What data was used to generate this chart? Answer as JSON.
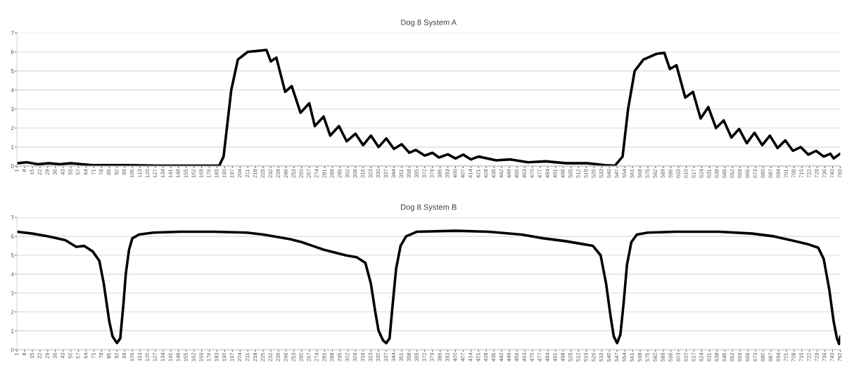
{
  "chart_data": [
    {
      "type": "line",
      "title": "Dog 8 System A",
      "xlim": [
        1,
        750
      ],
      "xticks": [
        1,
        8,
        15,
        22,
        29,
        36,
        43,
        50,
        57,
        64,
        71,
        78,
        85,
        92,
        99,
        106,
        113,
        120,
        127,
        134,
        141,
        148,
        155,
        162,
        169,
        176,
        183,
        190,
        197,
        204,
        211,
        218,
        225,
        232,
        239,
        246,
        253,
        260,
        267,
        274,
        281,
        288,
        295,
        302,
        309,
        316,
        323,
        330,
        337,
        344,
        351,
        358,
        365,
        372,
        379,
        386,
        393,
        400,
        407,
        414,
        421,
        428,
        435,
        442,
        449,
        456,
        463,
        470,
        477,
        484,
        491,
        498,
        505,
        512,
        519,
        526,
        533,
        540,
        547,
        554,
        561,
        568,
        575,
        582,
        589,
        596,
        603,
        610,
        617,
        624,
        631,
        638,
        645,
        652,
        659,
        666,
        673,
        680,
        687,
        694,
        701,
        708,
        715,
        722,
        729,
        736,
        743,
        750
      ],
      "ylim": [
        0,
        7
      ],
      "yticks": [
        0,
        1,
        2,
        3,
        4,
        5,
        6,
        7
      ],
      "grid": "y",
      "legend": false,
      "marker": "none",
      "line_style": "solid",
      "series": [
        {
          "color": "#000000",
          "x": [
            1,
            10,
            20,
            30,
            40,
            50,
            60,
            70,
            80,
            100,
            130,
            160,
            185,
            189,
            196,
            202,
            211,
            220,
            228,
            232,
            237,
            245,
            251,
            259,
            267,
            272,
            280,
            286,
            294,
            301,
            309,
            316,
            323,
            330,
            337,
            344,
            351,
            358,
            364,
            372,
            379,
            385,
            393,
            400,
            407,
            414,
            421,
            437,
            450,
            466,
            482,
            501,
            520,
            536,
            545,
            552,
            557,
            563,
            571,
            583,
            590,
            595,
            601,
            609,
            616,
            623,
            630,
            637,
            644,
            651,
            658,
            665,
            672,
            679,
            686,
            693,
            700,
            707,
            714,
            721,
            728,
            735,
            741,
            744,
            750
          ],
          "values": [
            0.15,
            0.2,
            0.1,
            0.15,
            0.1,
            0.15,
            0.1,
            0.05,
            0.05,
            0.05,
            0.02,
            0.02,
            0.02,
            0.5,
            4,
            5.6,
            6,
            6.05,
            6.1,
            5.5,
            5.7,
            3.9,
            4.2,
            2.8,
            3.3,
            2.1,
            2.6,
            1.6,
            2.1,
            1.3,
            1.7,
            1.1,
            1.6,
            1.0,
            1.45,
            0.9,
            1.15,
            0.7,
            0.85,
            0.55,
            0.7,
            0.45,
            0.62,
            0.4,
            0.6,
            0.35,
            0.5,
            0.3,
            0.35,
            0.2,
            0.25,
            0.15,
            0.15,
            0.05,
            0.02,
            0.5,
            3,
            5,
            5.6,
            5.9,
            5.95,
            5.1,
            5.3,
            3.6,
            3.9,
            2.5,
            3.1,
            2.0,
            2.4,
            1.5,
            1.95,
            1.2,
            1.75,
            1.1,
            1.6,
            0.95,
            1.35,
            0.8,
            1.0,
            0.6,
            0.8,
            0.5,
            0.65,
            0.4,
            0.65
          ]
        }
      ]
    },
    {
      "type": "line",
      "title": "Dog 8 System B",
      "xlim": [
        1,
        750
      ],
      "xticks": [
        1,
        8,
        15,
        22,
        29,
        36,
        43,
        50,
        57,
        64,
        71,
        78,
        85,
        92,
        99,
        106,
        113,
        120,
        127,
        134,
        141,
        148,
        155,
        162,
        169,
        176,
        183,
        190,
        197,
        204,
        211,
        218,
        225,
        232,
        239,
        246,
        253,
        260,
        267,
        274,
        281,
        288,
        295,
        302,
        309,
        316,
        323,
        330,
        337,
        344,
        351,
        358,
        365,
        372,
        379,
        386,
        393,
        400,
        407,
        414,
        421,
        428,
        435,
        442,
        449,
        456,
        463,
        470,
        477,
        484,
        491,
        498,
        505,
        512,
        519,
        526,
        533,
        540,
        547,
        554,
        561,
        568,
        575,
        582,
        589,
        596,
        603,
        610,
        617,
        624,
        631,
        638,
        645,
        652,
        659,
        666,
        673,
        680,
        687,
        694,
        701,
        708,
        715,
        722,
        729,
        736,
        743,
        750
      ],
      "ylim": [
        0,
        7
      ],
      "yticks": [
        0,
        1,
        2,
        3,
        4,
        5,
        6,
        7
      ],
      "grid": "y",
      "legend": false,
      "marker": "none",
      "line_style": "solid",
      "series": [
        {
          "color": "#000000",
          "x": [
            1,
            15,
            30,
            45,
            55,
            62,
            70,
            76,
            80,
            85,
            88,
            92,
            95,
            98,
            100,
            103,
            106,
            112,
            125,
            150,
            180,
            210,
            225,
            240,
            250,
            260,
            270,
            280,
            290,
            300,
            310,
            318,
            323,
            327,
            330,
            334,
            337,
            340,
            343,
            346,
            350,
            355,
            365,
            400,
            430,
            460,
            480,
            500,
            515,
            525,
            532,
            537,
            541,
            544,
            547,
            550,
            553,
            556,
            560,
            565,
            575,
            600,
            640,
            670,
            690,
            705,
            720,
            730,
            735,
            740,
            744,
            747,
            749,
            750
          ],
          "values": [
            6.25,
            6.15,
            6.0,
            5.8,
            5.45,
            5.5,
            5.2,
            4.7,
            3.5,
            1.5,
            0.7,
            0.35,
            0.6,
            2.5,
            4,
            5.3,
            5.9,
            6.1,
            6.2,
            6.25,
            6.25,
            6.2,
            6.1,
            5.95,
            5.85,
            5.7,
            5.5,
            5.3,
            5.15,
            5.0,
            4.9,
            4.6,
            3.5,
            2.0,
            1.0,
            0.5,
            0.35,
            0.6,
            2.5,
            4.3,
            5.5,
            6.0,
            6.25,
            6.3,
            6.25,
            6.1,
            5.9,
            5.75,
            5.6,
            5.5,
            5.0,
            3.5,
            1.8,
            0.7,
            0.35,
            0.8,
            2.5,
            4.5,
            5.7,
            6.1,
            6.2,
            6.25,
            6.25,
            6.15,
            6.0,
            5.8,
            5.6,
            5.4,
            4.8,
            3.2,
            1.5,
            0.6,
            0.3,
            0.7
          ]
        }
      ]
    }
  ]
}
